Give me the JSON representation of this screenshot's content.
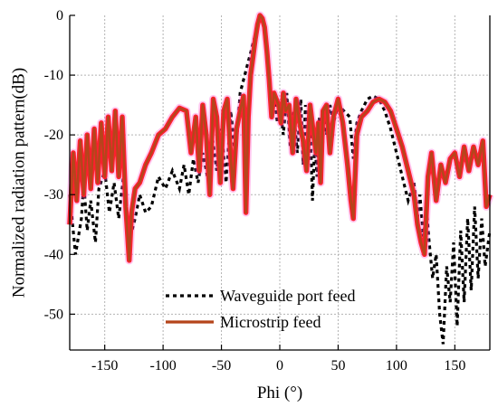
{
  "chart_data": {
    "type": "line",
    "title": "",
    "xlabel": "Phi (°)",
    "ylabel": "Normalized radiation pattern(dB)",
    "xlim": [
      -180,
      180
    ],
    "ylim": [
      -56,
      0
    ],
    "xticks": [
      -150,
      -100,
      -50,
      0,
      50,
      100,
      150
    ],
    "yticks": [
      0,
      -10,
      -20,
      -30,
      -40,
      -50
    ],
    "grid": true,
    "legend_position": "bottom-center",
    "colors": {
      "microstrip": "#b5451b",
      "microstrip_outline": "#ff1f2e",
      "microstrip_glow": "#ff5fd0",
      "waveguide": "#000000"
    },
    "series": [
      {
        "name": "Waveguide port feed",
        "style": "dotted",
        "x": [
          -180,
          -175,
          -170,
          -168,
          -165,
          -162,
          -158,
          -155,
          -150,
          -146,
          -142,
          -138,
          -134,
          -130,
          -128,
          -124,
          -120,
          -115,
          -110,
          -104,
          -98,
          -92,
          -86,
          -82,
          -78,
          -74,
          -70,
          -66,
          -62,
          -58,
          -54,
          -50,
          -46,
          -42,
          -38,
          -34,
          -30,
          -26,
          -22,
          -19,
          -16,
          -13,
          -10,
          -8,
          -5,
          -2,
          0,
          3,
          6,
          9,
          12,
          15,
          18,
          20,
          22,
          24,
          26,
          28,
          30,
          32,
          34,
          36,
          38,
          40,
          43,
          46,
          50,
          55,
          60,
          63,
          66,
          70,
          75,
          80,
          85,
          90,
          95,
          100,
          105,
          110,
          115,
          118,
          120,
          123,
          126,
          128,
          131,
          134,
          137,
          140,
          143,
          146,
          149,
          152,
          155,
          158,
          161,
          164,
          167,
          170,
          173,
          176,
          180
        ],
        "values": [
          -30,
          -40,
          -34,
          -28,
          -36,
          -31,
          -38,
          -29,
          -26,
          -33,
          -28,
          -34,
          -27,
          -40,
          -37,
          -34,
          -30,
          -33,
          -32,
          -27,
          -29,
          -26,
          -29,
          -25,
          -30,
          -24,
          -28,
          -23,
          -27,
          -20,
          -26,
          -19,
          -28,
          -16,
          -24,
          -13,
          -10,
          -7,
          -4,
          -1.5,
          -0.5,
          -2,
          -7,
          -16,
          -13,
          -18,
          -15,
          -20,
          -13,
          -22,
          -16,
          -23,
          -14,
          -25,
          -15,
          -22,
          -18,
          -31,
          -21,
          -27,
          -17,
          -25,
          -16,
          -20,
          -15,
          -18,
          -15,
          -16,
          -17,
          -24,
          -18,
          -16,
          -14,
          -13.5,
          -14,
          -16,
          -19,
          -23,
          -27,
          -31,
          -28,
          -34,
          -30,
          -37,
          -33,
          -38,
          -44,
          -40,
          -50,
          -55,
          -42,
          -48,
          -38,
          -52,
          -36,
          -48,
          -34,
          -46,
          -32,
          -44,
          -34,
          -42,
          -36
        ]
      },
      {
        "name": "Microstrip feed",
        "style": "solid",
        "x": [
          -180,
          -177,
          -174,
          -171,
          -168,
          -165,
          -162,
          -159,
          -156,
          -153,
          -150,
          -147,
          -144,
          -141,
          -138,
          -135,
          -132,
          -129,
          -127,
          -124,
          -120,
          -115,
          -110,
          -104,
          -98,
          -92,
          -86,
          -80,
          -76,
          -72,
          -69,
          -66,
          -63,
          -60,
          -57,
          -54,
          -51,
          -48,
          -45,
          -42,
          -40,
          -37,
          -34,
          -31,
          -29,
          -27,
          -25,
          -23,
          -21,
          -19,
          -17,
          -15,
          -13,
          -11,
          -9,
          -7,
          -5,
          -3,
          -1,
          1,
          3,
          5,
          8,
          11,
          14,
          17,
          20,
          23,
          26,
          29,
          31,
          33,
          35,
          37,
          40,
          43,
          46,
          50,
          54,
          58,
          61,
          63,
          66,
          70,
          75,
          80,
          85,
          90,
          95,
          100,
          105,
          110,
          115,
          118,
          121,
          124,
          127,
          130,
          134,
          138,
          142,
          146,
          150,
          154,
          158,
          162,
          166,
          170,
          174,
          177,
          180
        ],
        "values": [
          -35,
          -23,
          -31,
          -21,
          -30,
          -20,
          -29,
          -19,
          -28,
          -18,
          -27,
          -17,
          -26,
          -16,
          -27,
          -17,
          -32,
          -41,
          -33,
          -29,
          -28,
          -25,
          -23,
          -20,
          -19,
          -17,
          -15.5,
          -16,
          -23,
          -17,
          -26,
          -15,
          -20,
          -30,
          -14,
          -17,
          -28,
          -16,
          -14,
          -24,
          -29,
          -19,
          -16,
          -13.5,
          -33,
          -17,
          -10,
          -7,
          -4,
          -1.5,
          0,
          -0.5,
          -2,
          -6,
          -11,
          -17,
          -13,
          -14,
          -15,
          -18,
          -13,
          -16,
          -15,
          -23,
          -14,
          -18,
          -21,
          -26,
          -15,
          -20,
          -23,
          -18,
          -28,
          -16,
          -15,
          -23,
          -17,
          -14,
          -18,
          -25,
          -31,
          -34,
          -20,
          -17,
          -16,
          -14.5,
          -14,
          -14.5,
          -16,
          -19,
          -22,
          -26,
          -30,
          -35,
          -38,
          -40,
          -27,
          -23,
          -31,
          -25,
          -28,
          -24,
          -23,
          -27,
          -22,
          -26,
          -22,
          -25,
          -21,
          -32,
          -30
        ]
      }
    ]
  }
}
